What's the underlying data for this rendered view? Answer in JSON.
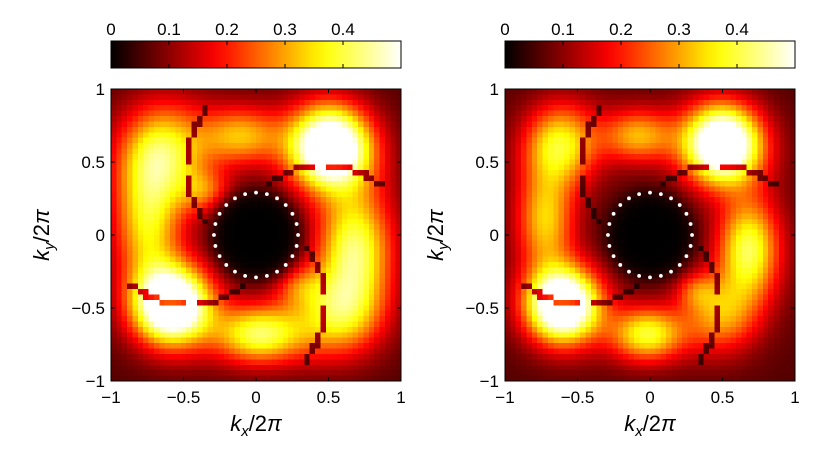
{
  "chart_data": [
    {
      "type": "heatmap",
      "title": "",
      "xlabel": "k_x/2π",
      "ylabel": "k_y/2π",
      "xlim": [
        -1,
        1
      ],
      "ylim": [
        -1,
        1
      ],
      "x_ticks": [
        "−1",
        "−0.5",
        "0",
        "0.5",
        "1"
      ],
      "x_tick_values": [
        -1,
        -0.5,
        0,
        0.5,
        1
      ],
      "y_ticks": [
        "−1",
        "−0.5",
        "0",
        "0.5",
        "1"
      ],
      "y_tick_values": [
        -1,
        -0.5,
        0,
        0.5,
        1
      ],
      "colorbar": {
        "colormap": "hot",
        "placement": "top",
        "range": [
          0,
          0.5
        ],
        "tick_values": [
          0,
          0.1,
          0.2,
          0.3,
          0.4
        ],
        "tick_labels": [
          "0",
          "0.1",
          "0.2",
          "0.3",
          "0.4"
        ]
      },
      "dark_disk_radius": 0.29,
      "blobs": [
        {
          "x": 0.51,
          "y": 0.6,
          "sx": 0.2,
          "sy": 0.2,
          "a": 0.6
        },
        {
          "x": -0.58,
          "y": -0.48,
          "sx": 0.19,
          "sy": 0.19,
          "a": 0.6
        },
        {
          "x": -0.65,
          "y": 0.55,
          "sx": 0.22,
          "sy": 0.25,
          "a": 0.33
        },
        {
          "x": -0.75,
          "y": 0.05,
          "sx": 0.16,
          "sy": 0.28,
          "a": 0.26
        },
        {
          "x": 0.68,
          "y": -0.1,
          "sx": 0.18,
          "sy": 0.3,
          "a": 0.35
        },
        {
          "x": 0.55,
          "y": -0.55,
          "sx": 0.22,
          "sy": 0.2,
          "a": 0.25
        },
        {
          "x": 0.02,
          "y": -0.68,
          "sx": 0.22,
          "sy": 0.14,
          "a": 0.34
        },
        {
          "x": -0.1,
          "y": 0.68,
          "sx": 0.2,
          "sy": 0.14,
          "a": 0.24
        },
        {
          "x": -0.35,
          "y": 0.3,
          "sx": 0.12,
          "sy": 0.1,
          "a": 0.14
        },
        {
          "x": 0.3,
          "y": -0.35,
          "sx": 0.12,
          "sy": 0.1,
          "a": 0.12
        }
      ]
    },
    {
      "type": "heatmap",
      "title": "",
      "xlabel": "k_x/2π",
      "ylabel": "k_y/2π",
      "xlim": [
        -1,
        1
      ],
      "ylim": [
        -1,
        1
      ],
      "x_ticks": [
        "−1",
        "−0.5",
        "0",
        "0.5",
        "1"
      ],
      "x_tick_values": [
        -1,
        -0.5,
        0,
        0.5,
        1
      ],
      "y_ticks": [
        "−1",
        "−0.5",
        "0",
        "0.5",
        "1"
      ],
      "y_tick_values": [
        -1,
        -0.5,
        0,
        0.5,
        1
      ],
      "colorbar": {
        "colormap": "hot",
        "placement": "top",
        "range": [
          0,
          0.5
        ],
        "tick_values": [
          0,
          0.1,
          0.2,
          0.3,
          0.4
        ],
        "tick_labels": [
          "0",
          "0.1",
          "0.2",
          "0.3",
          "0.4"
        ]
      },
      "dark_disk_radius": 0.29,
      "blobs": [
        {
          "x": 0.5,
          "y": 0.62,
          "sx": 0.19,
          "sy": 0.19,
          "a": 0.6
        },
        {
          "x": -0.6,
          "y": -0.48,
          "sx": 0.18,
          "sy": 0.18,
          "a": 0.6
        },
        {
          "x": -0.62,
          "y": 0.62,
          "sx": 0.18,
          "sy": 0.2,
          "a": 0.3
        },
        {
          "x": -0.72,
          "y": 0.1,
          "sx": 0.14,
          "sy": 0.25,
          "a": 0.26
        },
        {
          "x": 0.68,
          "y": -0.1,
          "sx": 0.15,
          "sy": 0.25,
          "a": 0.34
        },
        {
          "x": 0.48,
          "y": -0.55,
          "sx": 0.18,
          "sy": 0.18,
          "a": 0.22
        },
        {
          "x": -0.02,
          "y": -0.68,
          "sx": 0.18,
          "sy": 0.13,
          "a": 0.32
        },
        {
          "x": -0.08,
          "y": 0.68,
          "sx": 0.18,
          "sy": 0.13,
          "a": 0.24
        },
        {
          "x": 0.32,
          "y": -0.38,
          "sx": 0.1,
          "sy": 0.09,
          "a": 0.12
        }
      ]
    }
  ]
}
